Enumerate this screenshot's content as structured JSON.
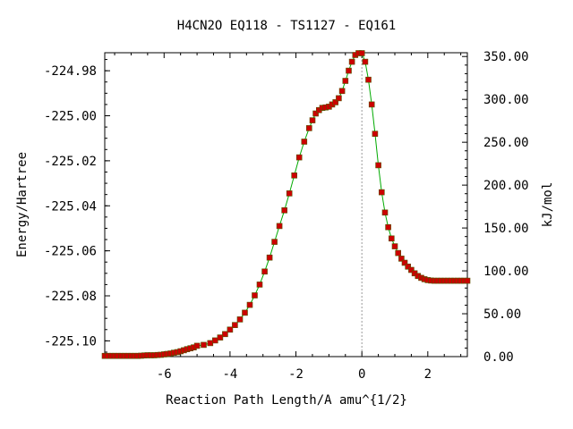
{
  "chart_data": {
    "type": "line",
    "title": "H4CN2O   EQ118 - TS1127 - EQ161",
    "xlabel": "Reaction Path Length/A amu^{1/2}",
    "ylabel": "Energy/Hartree",
    "y2label": "kJ/mol",
    "xlim": [
      -7.8,
      3.2
    ],
    "ylim": [
      -225.107,
      -224.972
    ],
    "y2lim": [
      0,
      354.4
    ],
    "x_ticks": [
      -6,
      -4,
      -2,
      0,
      2
    ],
    "x_tick_labels": [
      "-6",
      "-4",
      "-2",
      "0",
      "2"
    ],
    "y_ticks": [
      -224.98,
      -225.0,
      -225.02,
      -225.04,
      -225.06,
      -225.08,
      -225.1
    ],
    "y_tick_labels": [
      "-224.98",
      "-225.00",
      "-225.02",
      "-225.04",
      "-225.06",
      "-225.08",
      "-225.10"
    ],
    "y2_ticks": [
      0,
      50,
      100,
      150,
      200,
      250,
      300,
      350
    ],
    "y2_tick_labels": [
      "0.00",
      "50.00",
      "100.00",
      "150.00",
      "200.00",
      "250.00",
      "300.00",
      "350.00"
    ],
    "ts_x": 0,
    "line_color": "#00aa00",
    "marker_color": "#cc0000",
    "marker_border": "#555500",
    "ts_line_color": "#999999",
    "series": [
      {
        "x": [
          -7.8,
          -7.7,
          -7.6,
          -7.5,
          -7.4,
          -7.3,
          -7.2,
          -7.1,
          -7.0,
          -6.9,
          -6.8,
          -6.7,
          -6.6,
          -6.5,
          -6.4,
          -6.3,
          -6.2,
          -6.1,
          -6.0,
          -5.9,
          -5.8,
          -5.7,
          -5.6,
          -5.5,
          -5.4,
          -5.3,
          -5.2,
          -5.1,
          -5.0,
          -4.8,
          -4.6,
          -4.45,
          -4.3,
          -4.15,
          -4.0,
          -3.85,
          -3.7,
          -3.55,
          -3.4,
          -3.25,
          -3.1,
          -2.95,
          -2.8,
          -2.65,
          -2.5,
          -2.35,
          -2.2,
          -2.05,
          -1.9,
          -1.75,
          -1.6,
          -1.5,
          -1.4,
          -1.3,
          -1.2,
          -1.1,
          -1.0,
          -0.9,
          -0.8,
          -0.7,
          -0.6,
          -0.5,
          -0.4,
          -0.3,
          -0.2,
          -0.1,
          0.0,
          0.1,
          0.2,
          0.3,
          0.4,
          0.5,
          0.6,
          0.7,
          0.8,
          0.9,
          1.0,
          1.1,
          1.2,
          1.3,
          1.4,
          1.5,
          1.6,
          1.7,
          1.8,
          1.9,
          2.0,
          2.1,
          2.2,
          2.3,
          2.4,
          2.5,
          2.6,
          2.7,
          2.8,
          2.9,
          3.0,
          3.1,
          3.2
        ],
        "y": [
          -225.1067,
          -225.1067,
          -225.1067,
          -225.1067,
          -225.1067,
          -225.1067,
          -225.1067,
          -225.1067,
          -225.1067,
          -225.1067,
          -225.1067,
          -225.1066,
          -225.1065,
          -225.1064,
          -225.1064,
          -225.1064,
          -225.1063,
          -225.1062,
          -225.106,
          -225.1058,
          -225.1056,
          -225.1053,
          -225.105,
          -225.1046,
          -225.1042,
          -225.1037,
          -225.1033,
          -225.1029,
          -225.1022,
          -225.1018,
          -225.101,
          -225.0998,
          -225.0985,
          -225.097,
          -225.095,
          -225.093,
          -225.0905,
          -225.0875,
          -225.084,
          -225.0798,
          -225.075,
          -225.0692,
          -225.063,
          -225.056,
          -225.049,
          -225.042,
          -225.0345,
          -225.0265,
          -225.0185,
          -225.0115,
          -225.0055,
          -225.002,
          -224.999,
          -224.9975,
          -224.9965,
          -224.9963,
          -224.996,
          -224.995,
          -224.994,
          -224.9922,
          -224.989,
          -224.9845,
          -224.98,
          -224.976,
          -224.973,
          -224.9722,
          -224.9722,
          -224.976,
          -224.984,
          -224.995,
          -225.008,
          -225.022,
          -225.034,
          -225.043,
          -225.0495,
          -225.0545,
          -225.058,
          -225.061,
          -225.0635,
          -225.0653,
          -225.067,
          -225.0685,
          -225.07,
          -225.0712,
          -225.072,
          -225.0726,
          -225.073,
          -225.0732,
          -225.0733,
          -225.0733,
          -225.0733,
          -225.0733,
          -225.0733,
          -225.0733,
          -225.0733,
          -225.0733,
          -225.0733,
          -225.0733,
          -225.0733
        ]
      }
    ]
  }
}
